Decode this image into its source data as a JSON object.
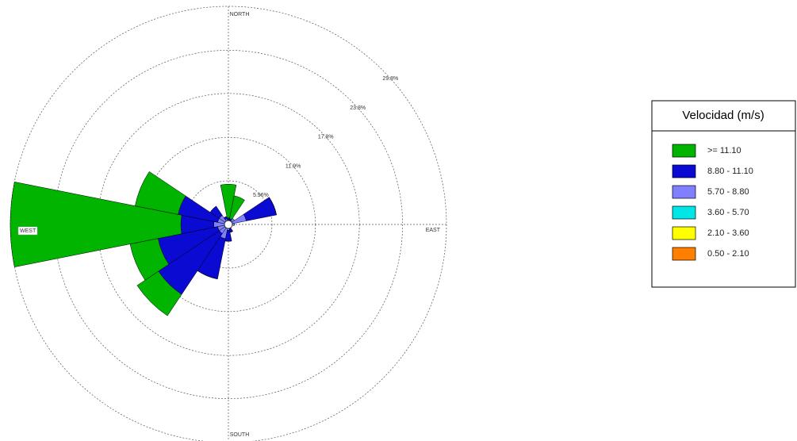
{
  "chart_data": {
    "type": "windrose",
    "axis_labels": [
      "NORTH",
      "EAST",
      "SOUTH",
      "WEST"
    ],
    "rlim": [
      0,
      29.8
    ],
    "rticks": [
      {
        "value": 5.96,
        "label": "5.96%"
      },
      {
        "value": 11.9,
        "label": "11.9%"
      },
      {
        "value": 17.9,
        "label": "17.9%"
      },
      {
        "value": 23.8,
        "label": "23.8%"
      },
      {
        "value": 29.8,
        "label": "29.8%"
      }
    ],
    "legend_title": "Velocidad (m/s)",
    "series": [
      {
        "name": ">= 11.10",
        "color": "#00b400",
        "values": [
          4.6,
          3.2,
          0,
          0,
          0,
          0,
          0,
          0,
          0,
          0,
          3.5,
          3.9,
          23.3,
          6.0,
          0,
          0
        ]
      },
      {
        "name": "8.80 - 11.10",
        "color": "#0a0ad2",
        "values": [
          0.6,
          0.5,
          0,
          4.2,
          0,
          0,
          0,
          0.5,
          1.5,
          5.6,
          10.0,
          8.3,
          4.5,
          5.5,
          1.5,
          0.3
        ]
      },
      {
        "name": "5.70 - 8.80",
        "color": "#8080ff",
        "values": [
          0.3,
          0.3,
          1.0,
          2.5,
          0.8,
          0.5,
          0.5,
          0.6,
          0.8,
          2.0,
          1.5,
          1.5,
          2.0,
          1.5,
          1.5,
          0.8
        ]
      },
      {
        "name": "3.60 - 5.70",
        "color": "#00e6e6",
        "values": [
          0,
          0,
          0,
          0,
          0,
          0,
          0,
          0,
          0,
          0,
          0,
          0,
          0,
          0,
          0,
          0
        ]
      },
      {
        "name": "2.10 - 3.60",
        "color": "#ffff00",
        "values": [
          0,
          0,
          0,
          0,
          0,
          0,
          0,
          0,
          0,
          0,
          0,
          0,
          0,
          0,
          0,
          0
        ]
      },
      {
        "name": "0.50 - 2.10",
        "color": "#ff8000",
        "values": [
          0,
          0,
          0,
          0,
          0,
          0,
          0,
          0,
          0,
          0,
          0,
          0,
          0,
          0,
          0,
          0
        ]
      }
    ]
  }
}
